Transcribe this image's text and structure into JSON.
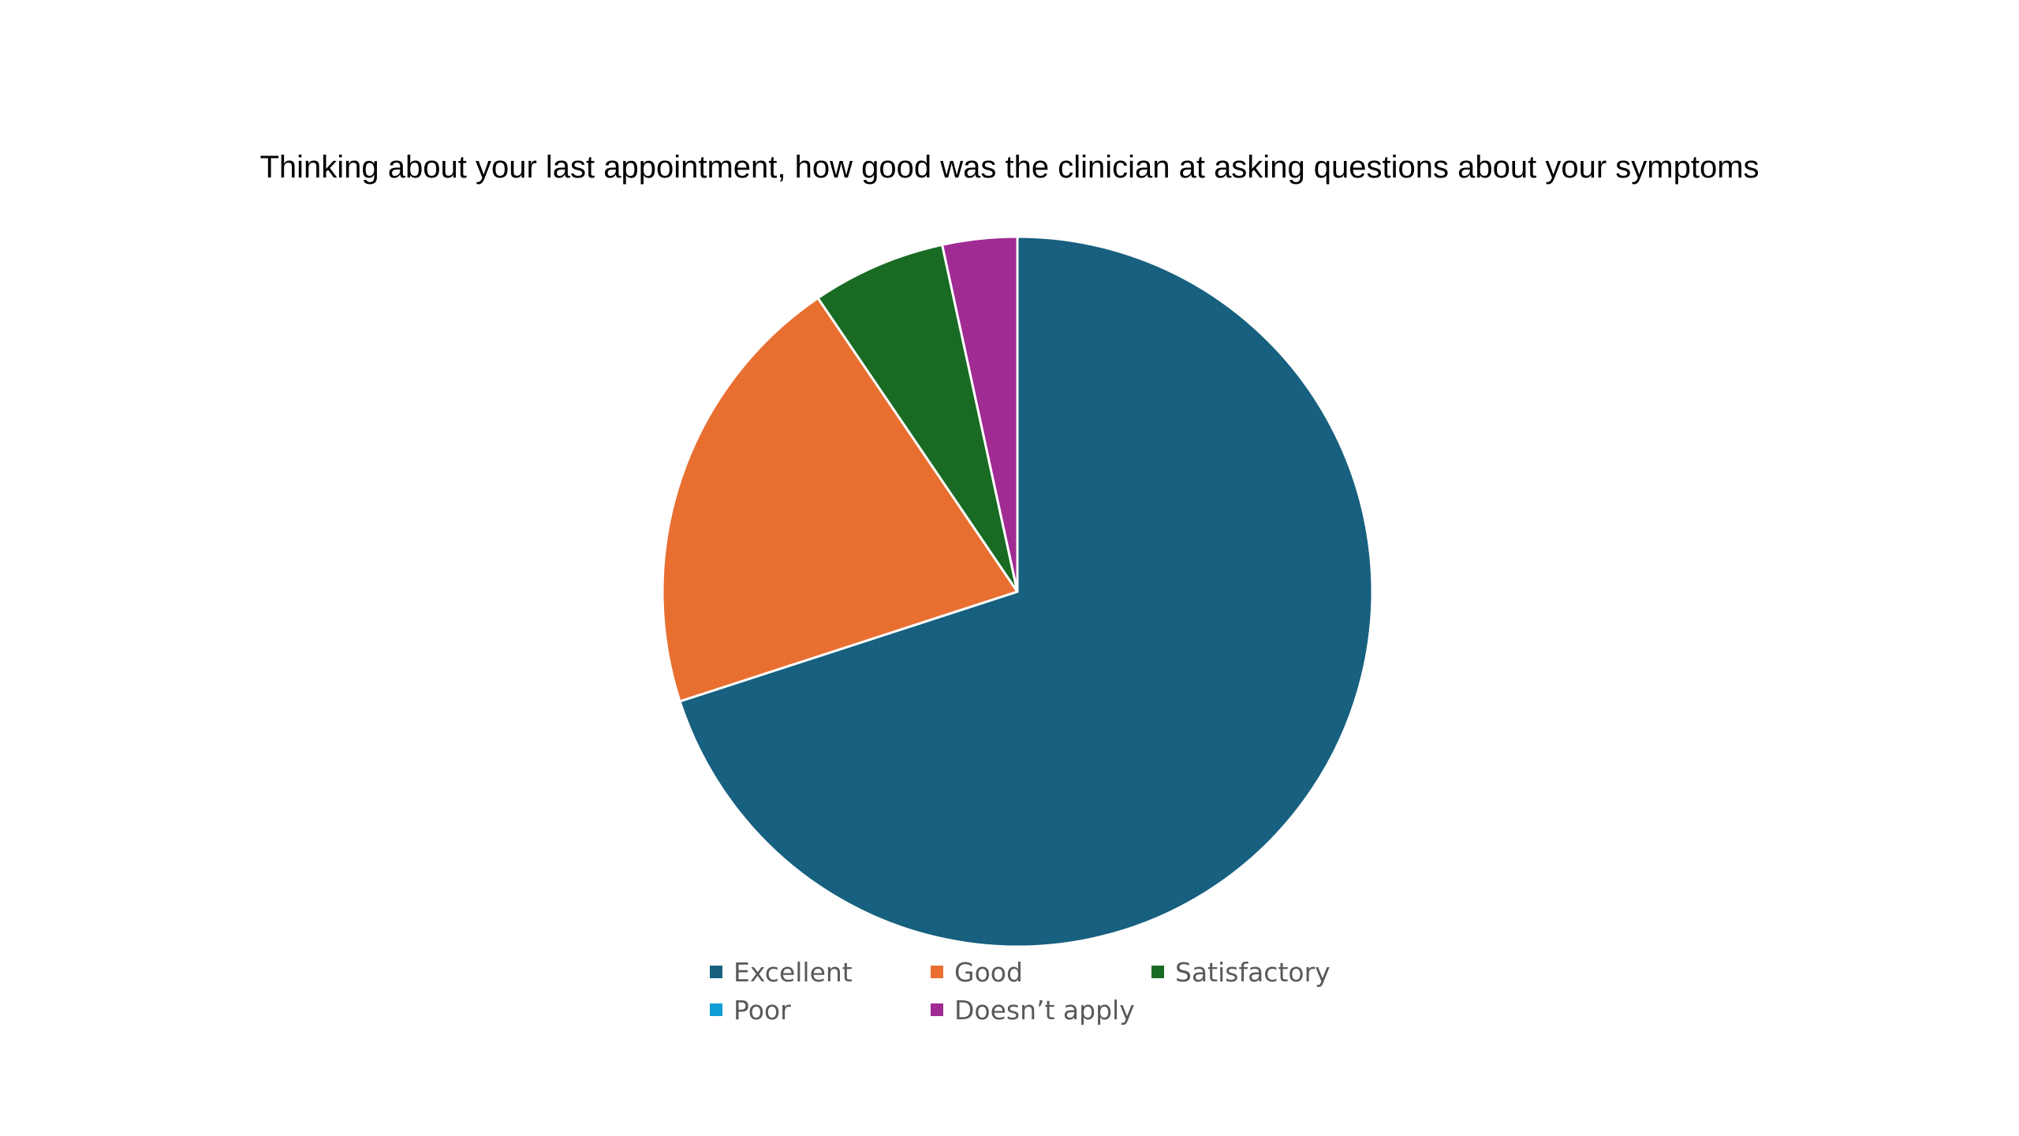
{
  "chart_data": {
    "type": "pie",
    "title": "Thinking about your last appointment, how good was the clinician at asking questions about your symptoms",
    "categories": [
      "Excellent",
      "Good",
      "Satisfactory",
      "Poor",
      "Doesn’t apply"
    ],
    "values": [
      70,
      20.5,
      6.1,
      0,
      3.4
    ],
    "colors": [
      "#17607f",
      "#e86f30",
      "#196b24",
      "#0f9ed5",
      "#a02b93"
    ],
    "legend_position": "bottom",
    "start_angle_deg": 0,
    "direction": "clockwise"
  }
}
